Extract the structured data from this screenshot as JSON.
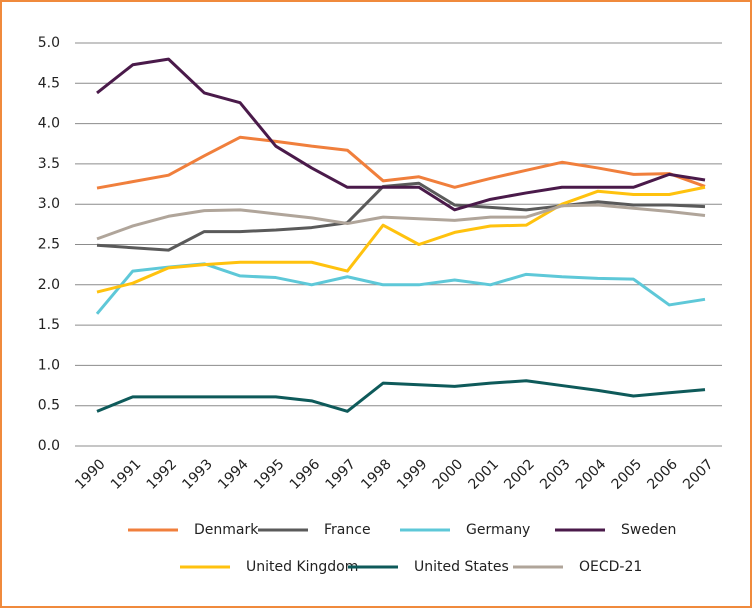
{
  "chart_data": {
    "type": "line",
    "categories": [
      "1990",
      "1991",
      "1992",
      "1993",
      "1994",
      "1995",
      "1996",
      "1997",
      "1998",
      "1999",
      "2000",
      "2001",
      "2002",
      "2003",
      "2004",
      "2005",
      "2006",
      "2007"
    ],
    "series": [
      {
        "name": "Denmark",
        "color": "#f07f3c",
        "values": [
          3.2,
          3.28,
          3.36,
          3.6,
          3.83,
          3.78,
          3.72,
          3.67,
          3.29,
          3.34,
          3.21,
          3.32,
          3.42,
          3.52,
          3.45,
          3.37,
          3.38,
          3.22
        ]
      },
      {
        "name": "France",
        "color": "#5a5a5a",
        "values": [
          2.49,
          2.46,
          2.43,
          2.66,
          2.66,
          2.68,
          2.71,
          2.77,
          3.22,
          3.26,
          2.99,
          2.96,
          2.93,
          2.98,
          3.03,
          2.99,
          2.99,
          2.97
        ]
      },
      {
        "name": "Germany",
        "color": "#5ec8d8",
        "values": [
          1.64,
          2.17,
          2.22,
          2.26,
          2.11,
          2.09,
          2.0,
          2.1,
          2.0,
          2.0,
          2.06,
          2.0,
          2.13,
          2.1,
          2.08,
          2.07,
          1.75,
          1.82
        ]
      },
      {
        "name": "Sweden",
        "color": "#4a1a4a",
        "values": [
          4.38,
          4.73,
          4.8,
          4.38,
          4.26,
          3.72,
          3.45,
          3.21,
          3.21,
          3.21,
          2.93,
          3.06,
          3.14,
          3.21,
          3.21,
          3.21,
          3.37,
          3.3
        ]
      },
      {
        "name": "United Kingdom",
        "color": "#ffc20e",
        "values": [
          1.91,
          2.02,
          2.21,
          2.25,
          2.28,
          2.28,
          2.28,
          2.17,
          2.74,
          2.5,
          2.65,
          2.73,
          2.74,
          3.0,
          3.16,
          3.12,
          3.12,
          3.21
        ]
      },
      {
        "name": "United States",
        "color": "#0e5a5a",
        "values": [
          0.43,
          0.61,
          0.61,
          0.61,
          0.61,
          0.61,
          0.56,
          0.43,
          0.78,
          0.76,
          0.74,
          0.78,
          0.81,
          0.75,
          0.69,
          0.62,
          0.66,
          0.7
        ]
      },
      {
        "name": "OECD-21",
        "color": "#b0a59a",
        "values": [
          2.57,
          2.73,
          2.85,
          2.92,
          2.93,
          2.88,
          2.83,
          2.76,
          2.84,
          2.82,
          2.8,
          2.84,
          2.84,
          2.98,
          2.99,
          2.95,
          2.91,
          2.86
        ]
      }
    ],
    "ylim": [
      0,
      5
    ],
    "yticks": [
      {
        "value": 0,
        "label": "0.0"
      },
      0.5,
      {
        "value": 1,
        "label": "1.0"
      },
      1.5,
      {
        "value": 2,
        "label": "2.0"
      },
      2.5,
      {
        "value": 3,
        "label": "3.0"
      },
      3.5,
      {
        "value": 4,
        "label": "4.0"
      },
      4.5,
      {
        "value": 5,
        "label": "5.0"
      }
    ],
    "grid": true
  }
}
